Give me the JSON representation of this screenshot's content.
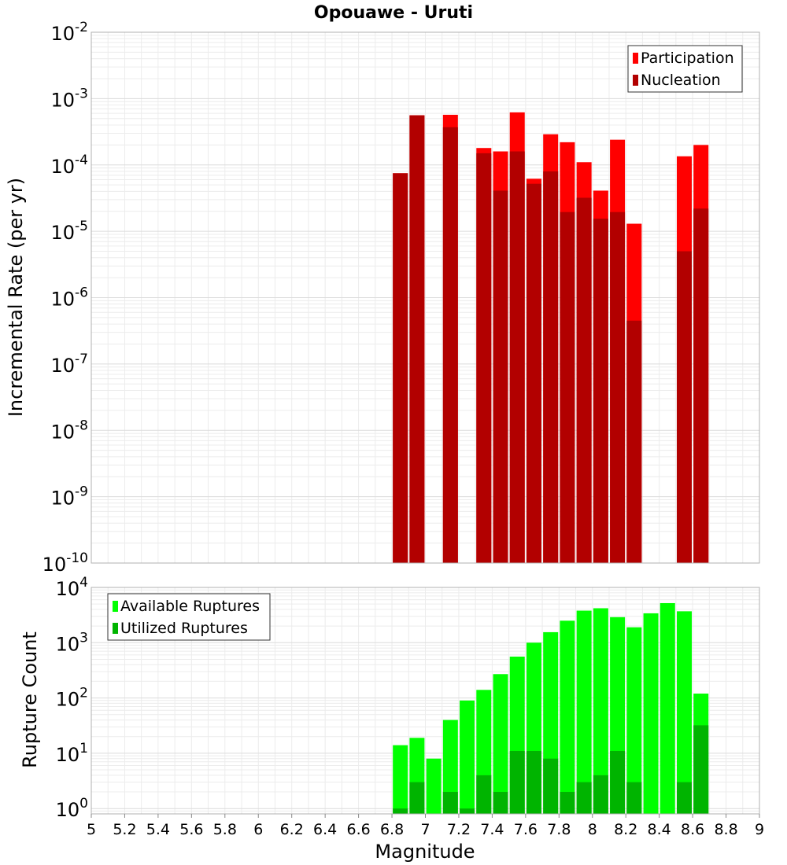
{
  "title": "Opouawe - Uruti",
  "chart_data": [
    {
      "type": "bar",
      "yscale": "log",
      "ylabel": "Incremental Rate (per yr)",
      "xlim": [
        5,
        9
      ],
      "ylim": [
        1e-10,
        0.01
      ],
      "y_tick_exponents": [
        -10,
        -9,
        -8,
        -7,
        -6,
        -5,
        -4,
        -3,
        -2
      ],
      "legend": {
        "placement": "top-right",
        "entries": [
          "Participation",
          "Nucleation"
        ]
      },
      "series": [
        {
          "name": "Participation",
          "color": "#ff0000",
          "points": [
            [
              6.85,
              7.5e-05
            ],
            [
              6.95,
              0.00056
            ],
            [
              7.15,
              0.00057
            ],
            [
              7.35,
              0.00018
            ],
            [
              7.45,
              0.00016
            ],
            [
              7.55,
              0.00062
            ],
            [
              7.65,
              6.2e-05
            ],
            [
              7.75,
              0.00029
            ],
            [
              7.85,
              0.00022
            ],
            [
              7.95,
              0.00011
            ],
            [
              8.05,
              4.1e-05
            ],
            [
              8.15,
              0.00024
            ],
            [
              8.25,
              1.3e-05
            ],
            [
              8.55,
              0.000135
            ],
            [
              8.65,
              0.0002
            ]
          ]
        },
        {
          "name": "Nucleation",
          "color": "#b20000",
          "points": [
            [
              6.85,
              7.5e-05
            ],
            [
              6.95,
              0.00056
            ],
            [
              7.15,
              0.00037
            ],
            [
              7.35,
              0.00015
            ],
            [
              7.45,
              4.1e-05
            ],
            [
              7.55,
              0.00016
            ],
            [
              7.65,
              5.2e-05
            ],
            [
              7.75,
              8e-05
            ],
            [
              7.85,
              1.95e-05
            ],
            [
              7.95,
              3.2e-05
            ],
            [
              8.05,
              1.55e-05
            ],
            [
              8.15,
              1.95e-05
            ],
            [
              8.25,
              4.5e-07
            ],
            [
              8.55,
              5e-06
            ],
            [
              8.65,
              2.2e-05
            ]
          ]
        }
      ]
    },
    {
      "type": "bar",
      "yscale": "log",
      "xlabel": "Magnitude",
      "ylabel": "Rupture Count",
      "xlim": [
        5,
        9
      ],
      "ylim": [
        0.8,
        10000
      ],
      "x_ticks": [
        "5",
        "5.2",
        "5.4",
        "5.6",
        "5.8",
        "6",
        "6.2",
        "6.4",
        "6.6",
        "6.8",
        "7",
        "7.2",
        "7.4",
        "7.6",
        "7.8",
        "8",
        "8.2",
        "8.4",
        "8.6",
        "8.8",
        "9"
      ],
      "y_tick_exponents": [
        0,
        1,
        2,
        3,
        4
      ],
      "legend": {
        "placement": "top-left",
        "entries": [
          "Available Ruptures",
          "Utilized Ruptures"
        ]
      },
      "series": [
        {
          "name": "Available Ruptures",
          "color": "#00ff00",
          "points": [
            [
              6.85,
              14
            ],
            [
              6.95,
              19
            ],
            [
              7.05,
              8
            ],
            [
              7.15,
              40
            ],
            [
              7.25,
              90
            ],
            [
              7.35,
              140
            ],
            [
              7.45,
              270
            ],
            [
              7.55,
              560
            ],
            [
              7.65,
              1000
            ],
            [
              7.75,
              1550
            ],
            [
              7.85,
              2500
            ],
            [
              7.95,
              3800
            ],
            [
              8.05,
              4200
            ],
            [
              8.15,
              2900
            ],
            [
              8.25,
              1900
            ],
            [
              8.35,
              3400
            ],
            [
              8.45,
              5200
            ],
            [
              8.55,
              3700
            ],
            [
              8.65,
              120
            ]
          ]
        },
        {
          "name": "Utilized Ruptures",
          "color": "#00b400",
          "points": [
            [
              6.85,
              1
            ],
            [
              6.95,
              3
            ],
            [
              7.15,
              2
            ],
            [
              7.25,
              1
            ],
            [
              7.35,
              4
            ],
            [
              7.45,
              2
            ],
            [
              7.55,
              11
            ],
            [
              7.65,
              11
            ],
            [
              7.75,
              8
            ],
            [
              7.85,
              2
            ],
            [
              7.95,
              3
            ],
            [
              8.05,
              4
            ],
            [
              8.15,
              11
            ],
            [
              8.25,
              3
            ],
            [
              8.55,
              3
            ],
            [
              8.65,
              32
            ]
          ]
        }
      ]
    }
  ]
}
